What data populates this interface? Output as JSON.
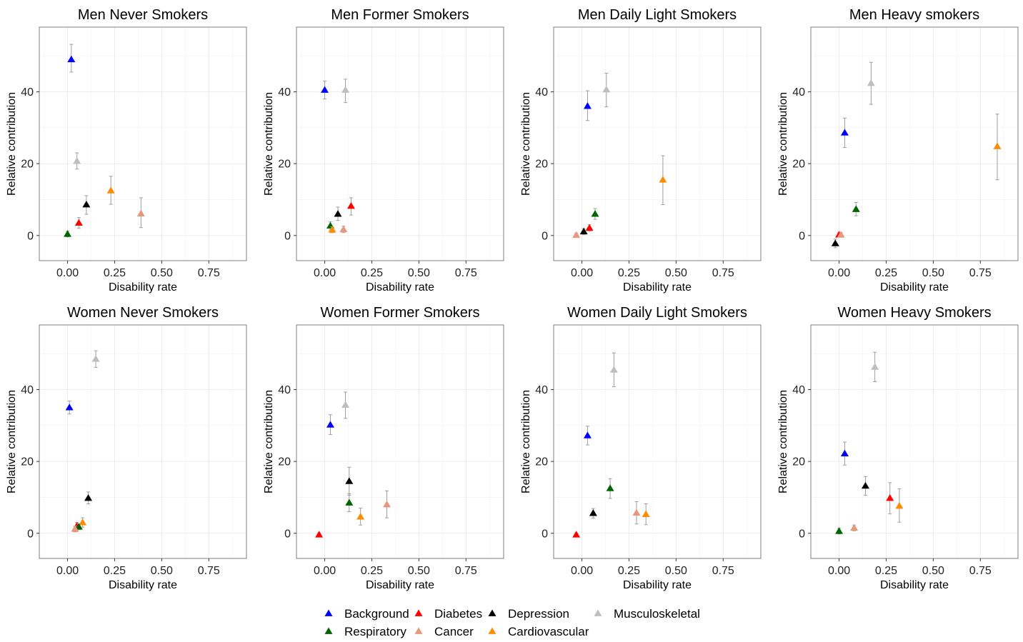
{
  "chart_data": {
    "type": "scatter",
    "xlabel": "Disability rate",
    "ylabel": "Relative contribution",
    "xlim": [
      -0.15,
      0.95
    ],
    "ylim": [
      -7,
      58
    ],
    "x_ticks": [
      0.0,
      0.25,
      0.5,
      0.75
    ],
    "x_tick_labels": [
      "0.00",
      "0.25",
      "0.50",
      "0.75"
    ],
    "y_ticks": [
      0,
      20,
      40
    ],
    "y_tick_labels": [
      "0",
      "20",
      "40"
    ],
    "grid": true,
    "marker": "triangle-up",
    "error_bars": true,
    "legend_position": "bottom",
    "legend": [
      {
        "name": "Background",
        "color": "#0000ff"
      },
      {
        "name": "Diabetes",
        "color": "#ff0000"
      },
      {
        "name": "Depression",
        "color": "#000000"
      },
      {
        "name": "Musculoskeletal",
        "color": "#bebebe"
      },
      {
        "name": "Respiratory",
        "color": "#006400"
      },
      {
        "name": "Cancer",
        "color": "#e9967a"
      },
      {
        "name": "Cardiovascular",
        "color": "#ff8c00"
      }
    ],
    "panels": [
      {
        "title": "Men Never Smokers",
        "points": [
          {
            "series": "Background",
            "x": 0.02,
            "y": 49,
            "lo": 45.5,
            "hi": 53.2
          },
          {
            "series": "Musculoskeletal",
            "x": 0.05,
            "y": 20.7,
            "lo": 18.5,
            "hi": 23
          },
          {
            "series": "Cardiovascular",
            "x": 0.23,
            "y": 12.5,
            "lo": 8.7,
            "hi": 16.5
          },
          {
            "series": "Depression",
            "x": 0.1,
            "y": 8.6,
            "lo": 5.9,
            "hi": 11.1
          },
          {
            "series": "Cancer",
            "x": 0.39,
            "y": 6.1,
            "lo": 2.2,
            "hi": 10.5
          },
          {
            "series": "Diabetes",
            "x": 0.06,
            "y": 3.5,
            "lo": 2,
            "hi": 5
          },
          {
            "series": "Respiratory",
            "x": 0.0,
            "y": 0.4,
            "lo": -0.4,
            "hi": 1.2
          }
        ]
      },
      {
        "title": "Men Former Smokers",
        "points": [
          {
            "series": "Background",
            "x": 0.0,
            "y": 40.5,
            "lo": 38,
            "hi": 43
          },
          {
            "series": "Musculoskeletal",
            "x": 0.11,
            "y": 40.5,
            "lo": 37,
            "hi": 43.5
          },
          {
            "series": "Diabetes",
            "x": 0.14,
            "y": 8.2,
            "lo": 5.7,
            "hi": 10.5
          },
          {
            "series": "Depression",
            "x": 0.07,
            "y": 6,
            "lo": 4.2,
            "hi": 7.9
          },
          {
            "series": "Respiratory",
            "x": 0.03,
            "y": 2.7,
            "lo": 1.6,
            "hi": 3.8
          },
          {
            "series": "Cancer",
            "x": 0.1,
            "y": 1.7,
            "lo": 0.8,
            "hi": 2.6
          },
          {
            "series": "Cardiovascular",
            "x": 0.04,
            "y": 1.6,
            "lo": 0.8,
            "hi": 2.4
          }
        ]
      },
      {
        "title": "Men Daily Light Smokers",
        "points": [
          {
            "series": "Background",
            "x": 0.03,
            "y": 36,
            "lo": 32,
            "hi": 40.3
          },
          {
            "series": "Musculoskeletal",
            "x": 0.13,
            "y": 40.6,
            "lo": 35.8,
            "hi": 45.2
          },
          {
            "series": "Cardiovascular",
            "x": 0.43,
            "y": 15.5,
            "lo": 8.6,
            "hi": 22.2
          },
          {
            "series": "Respiratory",
            "x": 0.07,
            "y": 6,
            "lo": 4.5,
            "hi": 7.5
          },
          {
            "series": "Diabetes",
            "x": 0.04,
            "y": 2.1,
            "lo": 1.2,
            "hi": 3
          },
          {
            "series": "Depression",
            "x": 0.01,
            "y": 1.1,
            "lo": 0.3,
            "hi": 1.9
          },
          {
            "series": "Cancer",
            "x": -0.03,
            "y": 0.1,
            "lo": -0.5,
            "hi": 0.6
          }
        ]
      },
      {
        "title": "Men Heavy smokers",
        "points": [
          {
            "series": "Background",
            "x": 0.03,
            "y": 28.6,
            "lo": 24.5,
            "hi": 32.7
          },
          {
            "series": "Musculoskeletal",
            "x": 0.17,
            "y": 42.4,
            "lo": 36.5,
            "hi": 48.2
          },
          {
            "series": "Cardiovascular",
            "x": 0.84,
            "y": 24.8,
            "lo": 15.5,
            "hi": 33.8
          },
          {
            "series": "Respiratory",
            "x": 0.09,
            "y": 7.3,
            "lo": 5.5,
            "hi": 9.2
          },
          {
            "series": "Diabetes",
            "x": 0.0,
            "y": 0.2,
            "lo": -0.4,
            "hi": 0.8
          },
          {
            "series": "Cancer",
            "x": 0.01,
            "y": 0.2,
            "lo": -0.4,
            "hi": 0.8
          },
          {
            "series": "Depression",
            "x": -0.02,
            "y": -2.2,
            "lo": -3.4,
            "hi": -1
          }
        ]
      },
      {
        "title": "Women Never Smokers",
        "points": [
          {
            "series": "Background",
            "x": 0.01,
            "y": 35,
            "lo": 33.2,
            "hi": 36.8
          },
          {
            "series": "Musculoskeletal",
            "x": 0.15,
            "y": 48.5,
            "lo": 46.2,
            "hi": 50.8
          },
          {
            "series": "Depression",
            "x": 0.11,
            "y": 9.8,
            "lo": 8.2,
            "hi": 11.5
          },
          {
            "series": "Cardiovascular",
            "x": 0.08,
            "y": 3,
            "lo": 1.7,
            "hi": 4.3
          },
          {
            "series": "Diabetes",
            "x": 0.05,
            "y": 2.1,
            "lo": 1.2,
            "hi": 3
          },
          {
            "series": "Respiratory",
            "x": 0.06,
            "y": 1.8,
            "lo": 1,
            "hi": 2.6
          },
          {
            "series": "Cancer",
            "x": 0.04,
            "y": 1.2,
            "lo": 0.4,
            "hi": 2
          }
        ]
      },
      {
        "title": "Women Former Smokers",
        "points": [
          {
            "series": "Background",
            "x": 0.03,
            "y": 30.2,
            "lo": 27.5,
            "hi": 33
          },
          {
            "series": "Musculoskeletal",
            "x": 0.11,
            "y": 35.7,
            "lo": 32,
            "hi": 39.3
          },
          {
            "series": "Depression",
            "x": 0.13,
            "y": 14.5,
            "lo": 10.6,
            "hi": 18.4
          },
          {
            "series": "Respiratory",
            "x": 0.13,
            "y": 8.5,
            "lo": 6,
            "hi": 11
          },
          {
            "series": "Cancer",
            "x": 0.33,
            "y": 8,
            "lo": 4.3,
            "hi": 11.8
          },
          {
            "series": "Cardiovascular",
            "x": 0.19,
            "y": 4.6,
            "lo": 2.3,
            "hi": 7
          },
          {
            "series": "Diabetes",
            "x": -0.03,
            "y": -0.4,
            "lo": -0.8,
            "hi": 0
          }
        ]
      },
      {
        "title": "Women Daily Light Smokers",
        "points": [
          {
            "series": "Background",
            "x": 0.03,
            "y": 27.2,
            "lo": 24.6,
            "hi": 29.8
          },
          {
            "series": "Musculoskeletal",
            "x": 0.17,
            "y": 45.5,
            "lo": 40.8,
            "hi": 50.2
          },
          {
            "series": "Respiratory",
            "x": 0.15,
            "y": 12.5,
            "lo": 9.7,
            "hi": 15.2
          },
          {
            "series": "Depression",
            "x": 0.06,
            "y": 5.6,
            "lo": 4.2,
            "hi": 6.9
          },
          {
            "series": "Cancer",
            "x": 0.29,
            "y": 5.7,
            "lo": 2.6,
            "hi": 8.8
          },
          {
            "series": "Cardiovascular",
            "x": 0.34,
            "y": 5.3,
            "lo": 2.4,
            "hi": 8.2
          },
          {
            "series": "Diabetes",
            "x": -0.03,
            "y": -0.4,
            "lo": -0.8,
            "hi": 0
          }
        ]
      },
      {
        "title": "Women Heavy Smokers",
        "points": [
          {
            "series": "Background",
            "x": 0.03,
            "y": 22.2,
            "lo": 19,
            "hi": 25.4
          },
          {
            "series": "Musculoskeletal",
            "x": 0.19,
            "y": 46.3,
            "lo": 42.2,
            "hi": 50.4
          },
          {
            "series": "Depression",
            "x": 0.14,
            "y": 13.2,
            "lo": 10.6,
            "hi": 15.8
          },
          {
            "series": "Diabetes",
            "x": 0.27,
            "y": 9.8,
            "lo": 5.4,
            "hi": 14.1
          },
          {
            "series": "Cardiovascular",
            "x": 0.32,
            "y": 7.6,
            "lo": 3.1,
            "hi": 12.4
          },
          {
            "series": "Cancer",
            "x": 0.08,
            "y": 1.5,
            "lo": 0.7,
            "hi": 2.3
          },
          {
            "series": "Respiratory",
            "x": 0.0,
            "y": 0.6,
            "lo": -0.2,
            "hi": 1.4
          }
        ]
      }
    ]
  }
}
